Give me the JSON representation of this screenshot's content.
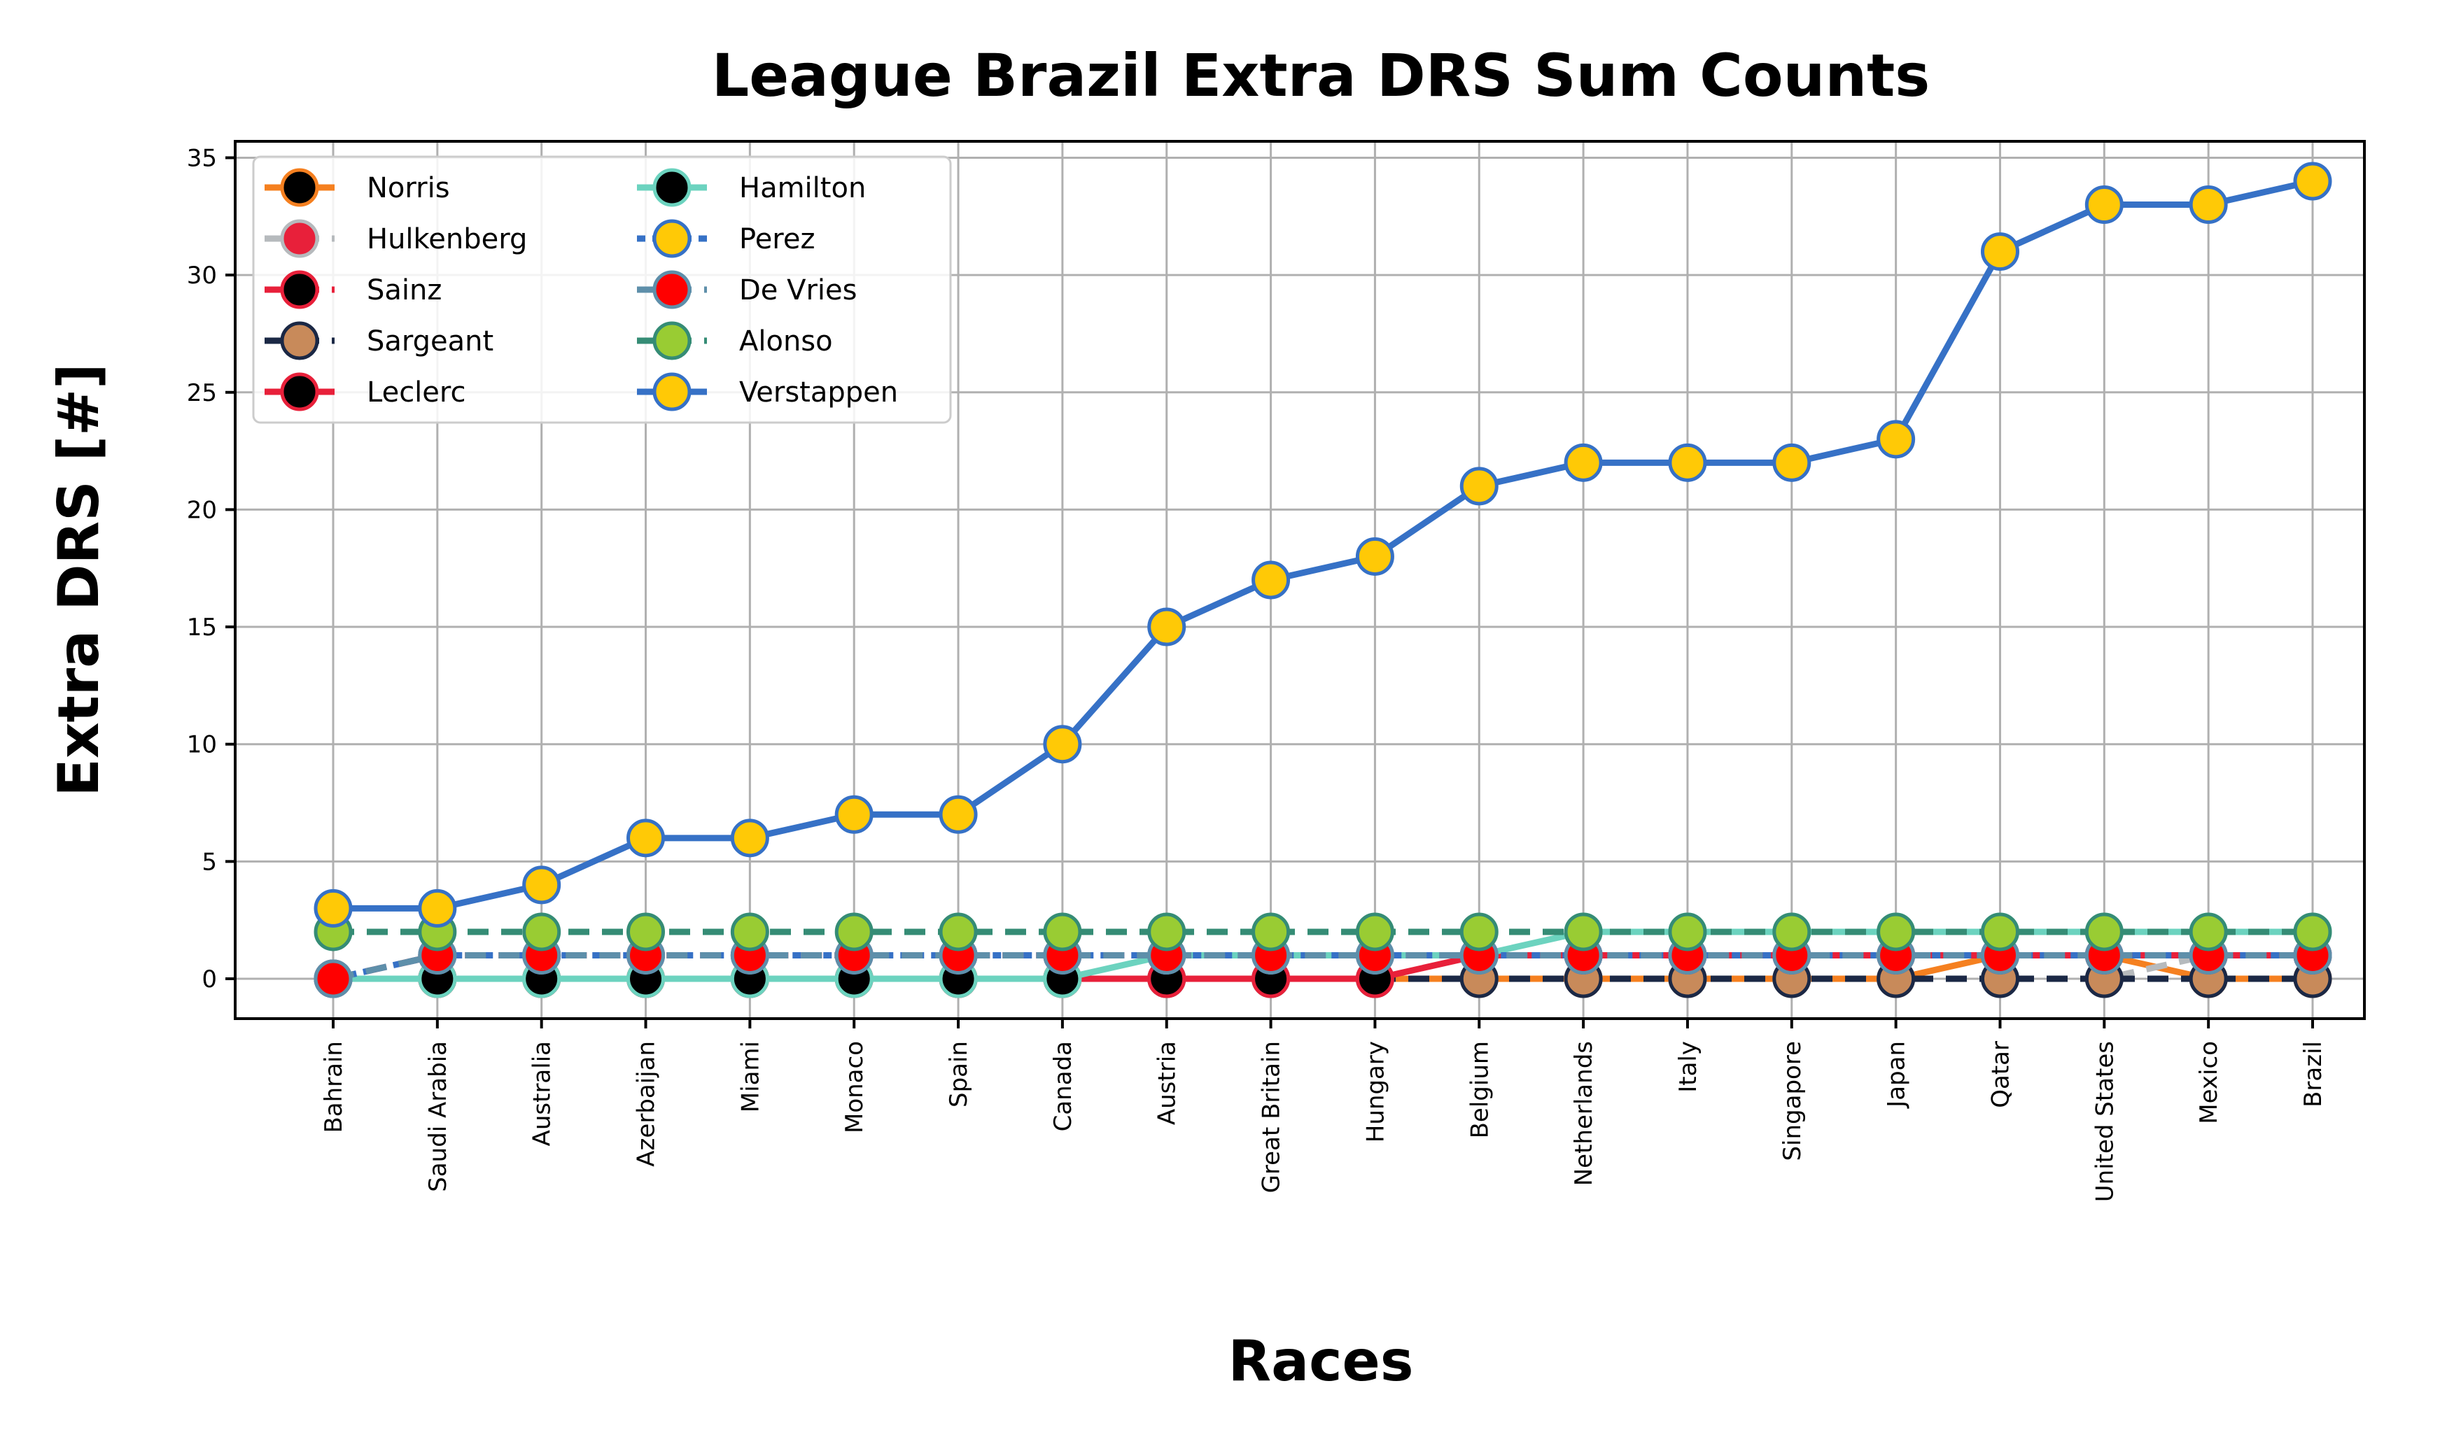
{
  "chart_data": {
    "type": "line",
    "title": "League Brazil Extra DRS Sum Counts",
    "xlabel": "Races",
    "ylabel": "Extra DRS [#]",
    "ylim": [
      -1.7,
      35.7
    ],
    "yticks": [
      0,
      5,
      10,
      15,
      20,
      25,
      30,
      35
    ],
    "grid": true,
    "legend_position": "upper-left",
    "legend_columns": 2,
    "categories": [
      "Bahrain",
      "Saudi Arabia",
      "Australia",
      "Azerbaijan",
      "Miami",
      "Monaco",
      "Spain",
      "Canada",
      "Austria",
      "Great Britain",
      "Hungary",
      "Belgium",
      "Netherlands",
      "Italy",
      "Singapore",
      "Japan",
      "Qatar",
      "United States",
      "Mexico",
      "Brazil"
    ],
    "series": [
      {
        "name": "Norris",
        "line_color": "#F58020",
        "marker_color": "#000000",
        "dash": "solid",
        "values": [
          0,
          0,
          0,
          0,
          0,
          0,
          0,
          0,
          0,
          0,
          0,
          0,
          0,
          0,
          0,
          0,
          1,
          1,
          0,
          0
        ]
      },
      {
        "name": "Hulkenberg",
        "line_color": "#B6BABD",
        "marker_color": "#E8203A",
        "dash": "dashed",
        "values": [
          0,
          0,
          0,
          0,
          0,
          0,
          0,
          0,
          0,
          0,
          0,
          0,
          0,
          0,
          0,
          0,
          0,
          0,
          1,
          1
        ]
      },
      {
        "name": "Sainz",
        "line_color": "#E8203A",
        "marker_color": "#000000",
        "dash": "dashed",
        "values": [
          0,
          1,
          1,
          1,
          1,
          1,
          1,
          1,
          1,
          1,
          1,
          1,
          1,
          1,
          1,
          1,
          1,
          1,
          1,
          1
        ]
      },
      {
        "name": "Sargeant",
        "line_color": "#1B2845",
        "marker_color": "#C88A5A",
        "dash": "dashed",
        "values": [
          0,
          0,
          0,
          0,
          0,
          0,
          0,
          0,
          0,
          0,
          0,
          0,
          0,
          0,
          0,
          0,
          0,
          0,
          0,
          0
        ]
      },
      {
        "name": "Leclerc",
        "line_color": "#E8203A",
        "marker_color": "#000000",
        "dash": "solid",
        "values": [
          0,
          0,
          0,
          0,
          0,
          0,
          0,
          0,
          0,
          0,
          0,
          1,
          1,
          1,
          1,
          1,
          1,
          1,
          1,
          1
        ]
      },
      {
        "name": "Hamilton",
        "line_color": "#6CD3BF",
        "marker_color": "#000000",
        "dash": "solid",
        "values": [
          0,
          0,
          0,
          0,
          0,
          0,
          0,
          0,
          1,
          1,
          1,
          1,
          2,
          2,
          2,
          2,
          2,
          2,
          2,
          2
        ]
      },
      {
        "name": "Perez",
        "line_color": "#3671C6",
        "marker_color": "#FFC906",
        "dash": "dotted",
        "values": [
          0,
          1,
          1,
          1,
          1,
          1,
          1,
          1,
          1,
          1,
          1,
          1,
          1,
          1,
          1,
          1,
          1,
          1,
          1,
          1
        ]
      },
      {
        "name": "De Vries",
        "line_color": "#5E8FAA",
        "marker_color": "#FF0000",
        "dash": "dashed",
        "values": [
          0,
          1,
          1,
          1,
          1,
          1,
          1,
          1,
          1,
          1,
          1,
          1,
          1,
          1,
          1,
          1,
          1,
          1,
          1,
          1
        ]
      },
      {
        "name": "Alonso",
        "line_color": "#358C75",
        "marker_color": "#99CC33",
        "dash": "dashed",
        "values": [
          2,
          2,
          2,
          2,
          2,
          2,
          2,
          2,
          2,
          2,
          2,
          2,
          2,
          2,
          2,
          2,
          2,
          2,
          2,
          2
        ]
      },
      {
        "name": "Verstappen",
        "line_color": "#3671C6",
        "marker_color": "#FFC906",
        "dash": "solid",
        "values": [
          3,
          3,
          4,
          6,
          6,
          7,
          7,
          10,
          15,
          17,
          18,
          21,
          22,
          22,
          22,
          23,
          31,
          33,
          33,
          34
        ]
      }
    ]
  }
}
